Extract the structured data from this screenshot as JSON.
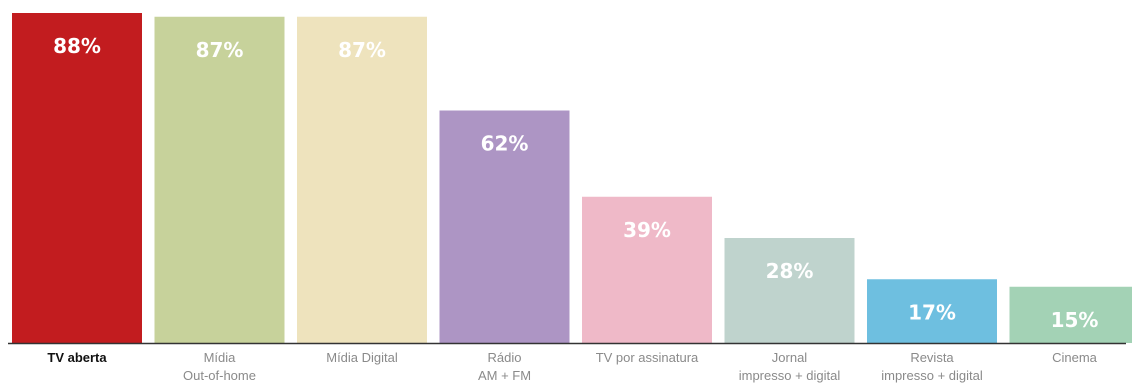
{
  "chart_data": {
    "type": "bar",
    "title": "",
    "xlabel": "",
    "ylabel": "",
    "ylim": [
      0,
      88
    ],
    "grid": false,
    "legend": "none",
    "categories": [
      [
        "TV aberta"
      ],
      [
        "Mídia",
        "Out-of-home"
      ],
      [
        "Mídia Digital"
      ],
      [
        "Rádio",
        "AM + FM"
      ],
      [
        "TV por assinatura"
      ],
      [
        "Jornal",
        "impresso + digital"
      ],
      [
        "Revista",
        "impresso + digital"
      ],
      [
        "Cinema"
      ]
    ],
    "values": [
      88,
      87,
      87,
      62,
      39,
      28,
      17,
      15
    ],
    "value_labels": [
      "88%",
      "87%",
      "87%",
      "62%",
      "39%",
      "28%",
      "17%",
      "15%"
    ],
    "colors": [
      "#c21c1f",
      "#c7d29b",
      "#eee3bd",
      "#ad95c4",
      "#efb9c8",
      "#bfd3cd",
      "#6ebfe0",
      "#a3d2b5"
    ],
    "axis_color": "#333333"
  }
}
